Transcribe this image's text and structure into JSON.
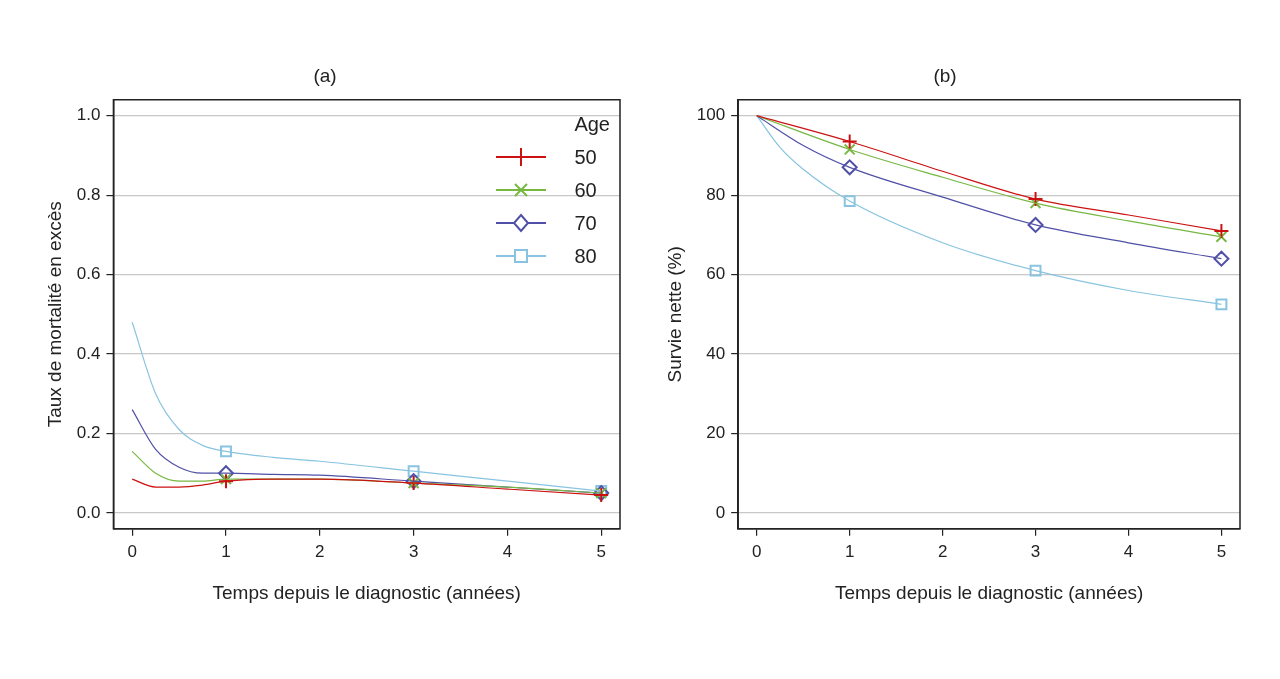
{
  "chart_data": [
    {
      "type": "line",
      "title": "(a)",
      "xlabel": "Temps depuis le diagnostic (années)",
      "ylabel": "Taux de mortalité en excès",
      "xlim": [
        -0.2,
        5.2
      ],
      "xticks": [
        0,
        1,
        2,
        3,
        4,
        5
      ],
      "ylim": [
        -0.04,
        1.04
      ],
      "yticks": [
        {
          "value": 0,
          "label": "0.0"
        },
        0.2,
        0.4,
        0.6,
        0.8,
        {
          "value": 1,
          "label": "1.0"
        }
      ],
      "grid": "y",
      "legend": "top right",
      "legend_title": "Age",
      "line_style": "solid",
      "series": [
        {
          "name": "50",
          "color": "#cc1111",
          "x": [
            0,
            0.25,
            0.5,
            0.75,
            1,
            1.5,
            2,
            3,
            4,
            5
          ],
          "values": [
            0.085,
            0.065,
            0.065,
            0.07,
            0.08,
            0.085,
            0.085,
            0.075,
            0.06,
            0.045
          ]
        },
        {
          "name": "60",
          "color": "#77b843",
          "x": [
            0,
            0.25,
            0.5,
            0.75,
            1,
            1.5,
            2,
            3,
            4,
            5
          ],
          "values": [
            0.155,
            0.1,
            0.08,
            0.08,
            0.085,
            0.085,
            0.085,
            0.075,
            0.065,
            0.05
          ]
        },
        {
          "name": "70",
          "color": "#5050a8",
          "x": [
            0,
            0.25,
            0.5,
            0.75,
            1,
            1.5,
            2,
            3,
            4,
            5
          ],
          "values": [
            0.26,
            0.16,
            0.115,
            0.1,
            0.1,
            0.097,
            0.095,
            0.08,
            0.065,
            0.05
          ]
        },
        {
          "name": "80",
          "color": "#88c4e0",
          "x": [
            0,
            0.25,
            0.5,
            0.75,
            1,
            1.5,
            2,
            3,
            4,
            5
          ],
          "values": [
            0.48,
            0.3,
            0.21,
            0.17,
            0.155,
            0.14,
            0.13,
            0.105,
            0.08,
            0.055
          ]
        },
        {
          "type": "scatter",
          "color": "#cc1111",
          "marker": "cross",
          "x": [
            1,
            3,
            5
          ],
          "values": [
            0.08,
            0.075,
            0.045
          ]
        },
        {
          "type": "scatter",
          "color": "#77b843",
          "marker": "x",
          "x": [
            1,
            3,
            5
          ],
          "values": [
            0.085,
            0.075,
            0.05
          ]
        },
        {
          "type": "scatter",
          "color": "#5050a8",
          "marker": "diamond",
          "x": [
            1,
            3,
            5
          ],
          "values": [
            0.1,
            0.08,
            0.05
          ]
        },
        {
          "type": "scatter",
          "color": "#88c4e0",
          "marker": "square",
          "x": [
            1,
            3,
            5
          ],
          "values": [
            0.155,
            0.105,
            0.055
          ]
        }
      ]
    },
    {
      "type": "line",
      "title": "(b)",
      "xlabel": "Temps depuis le diagnostic (années)",
      "ylabel": "Survie nette (%)",
      "xlim": [
        -0.2,
        5.2
      ],
      "xticks": [
        0,
        1,
        2,
        3,
        4,
        5
      ],
      "ylim": [
        -4,
        104
      ],
      "yticks": [
        0,
        20,
        40,
        60,
        80,
        100
      ],
      "grid": "y",
      "line_style": "solid",
      "series": [
        {
          "color": "#cc1111",
          "x": [
            0,
            1,
            2,
            3,
            4,
            5
          ],
          "values": [
            100,
            93.5,
            86,
            79,
            75,
            71
          ]
        },
        {
          "color": "#77b843",
          "x": [
            0,
            1,
            2,
            3,
            4,
            5
          ],
          "values": [
            100,
            91.5,
            84.5,
            78,
            73.5,
            69.5
          ]
        },
        {
          "color": "#5050a8",
          "x": [
            0,
            0.5,
            1,
            2,
            3,
            4,
            5
          ],
          "values": [
            100,
            92.5,
            87,
            79.5,
            72.5,
            68,
            64
          ]
        },
        {
          "color": "#88c4e0",
          "x": [
            0,
            0.25,
            0.5,
            1,
            2,
            3,
            4,
            5
          ],
          "values": [
            100,
            92,
            86.5,
            78.5,
            68,
            61,
            56,
            52.5
          ]
        },
        {
          "type": "scatter",
          "color": "#cc1111",
          "marker": "cross",
          "x": [
            1,
            3,
            5
          ],
          "values": [
            93.5,
            79,
            71
          ]
        },
        {
          "type": "scatter",
          "color": "#77b843",
          "marker": "x",
          "x": [
            1,
            3,
            5
          ],
          "values": [
            91.5,
            78,
            69.5
          ]
        },
        {
          "type": "scatter",
          "color": "#5050a8",
          "marker": "diamond",
          "x": [
            1,
            3,
            5
          ],
          "values": [
            87,
            72.5,
            64
          ]
        },
        {
          "type": "scatter",
          "color": "#88c4e0",
          "marker": "square",
          "x": [
            1,
            3,
            5
          ],
          "values": [
            78.5,
            61,
            52.5
          ]
        }
      ]
    }
  ]
}
